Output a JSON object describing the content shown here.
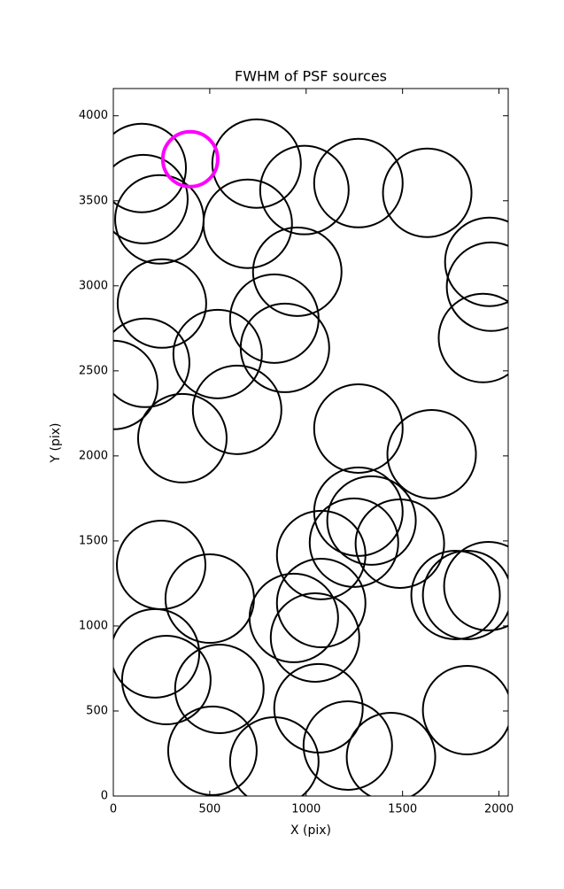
{
  "chart_data": {
    "type": "scatter",
    "title": "FWHM of PSF sources",
    "x_label": "X (pix)",
    "y_label": "Y (pix)",
    "xlim": [
      0,
      2048
    ],
    "ylim": [
      0,
      4160
    ],
    "xticks": [
      0,
      500,
      1000,
      1500,
      2000
    ],
    "yticks": [
      0,
      500,
      1000,
      1500,
      2000,
      2500,
      3000,
      3500,
      4000
    ],
    "series": [
      {
        "color": "#000000",
        "x": [
          147,
          156,
          239,
          743,
          991,
          1271,
          1628,
          697,
          954,
          1950,
          1959,
          1917,
          252,
          541,
          835,
          890,
          165,
          0,
          642,
          358,
          1271,
          1651,
          1271,
          1339,
          1248,
          1486,
          1078,
          248,
          500,
          1078,
          936,
          1046,
          1775,
          1835,
          1945,
          216,
          275,
          550,
          1064,
          1835,
          514,
          835,
          1216,
          1440
        ],
        "y": [
          3693,
          3510,
          3391,
          3719,
          3563,
          3604,
          3547,
          3365,
          3083,
          3141,
          2995,
          2693,
          2896,
          2599,
          2807,
          2635,
          2547,
          2417,
          2271,
          2104,
          2161,
          2010,
          1672,
          1620,
          1490,
          1484,
          1417,
          1359,
          1161,
          1135,
          1047,
          932,
          1182,
          1182,
          1234,
          839,
          682,
          630,
          516,
          505,
          266,
          203,
          297,
          229
        ]
      },
      {
        "color": "#ff00ff",
        "x": [
          399
        ],
        "y": [
          3745
        ]
      }
    ]
  }
}
